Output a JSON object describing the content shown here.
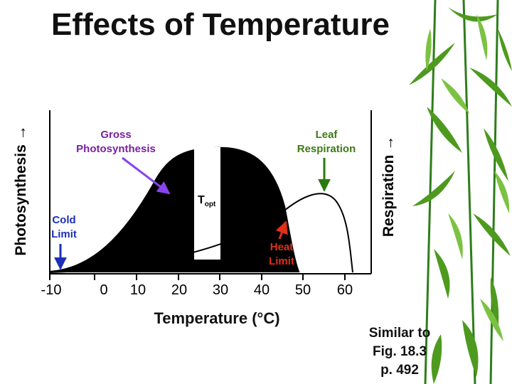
{
  "title": "Effects of Temperature",
  "left_axis_label": "Photosynthesis →",
  "right_axis_label": "Respiration →",
  "x_axis_label": "Temperature (°C)",
  "x_ticks": [
    "-10",
    "0",
    "10",
    "20",
    "30",
    "40",
    "50",
    "60"
  ],
  "labels": {
    "gross_line1": "Gross",
    "gross_line2": "Photosynthesis",
    "leaf_line1": "Leaf",
    "leaf_line2": "Respiration",
    "topt_main": "T",
    "topt_sub": "opt",
    "cold_line1": "Cold",
    "cold_line2": "Limit",
    "heat_line1": "Heat",
    "heat_line2": "Limit"
  },
  "reference": {
    "line1": "Similar to",
    "line2": "Fig. 18.3",
    "line3": "p. 492"
  },
  "colors": {
    "purple_arrow": "#8844ee",
    "green_arrow": "#2a7a12",
    "blue_arrow": "#1c2fb8",
    "red_arrow": "#e0301a",
    "cold_limit_text": "#1c2fb8",
    "heat_limit_text": "#e0301a",
    "gross_text": "#7b1fa2",
    "leaf_text": "#3d7a15",
    "background_decoration": "bamboo-leaves"
  }
}
